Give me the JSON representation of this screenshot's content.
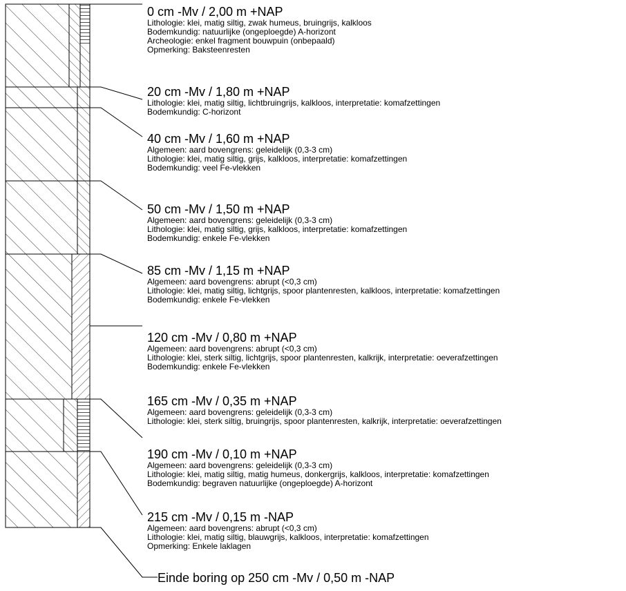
{
  "layers": [
    {
      "heading": "0 cm -Mv / 2,00 m +NAP",
      "lines": [
        "Lithologie: klei, matig siltig, zwak humeus, bruingrijs, kalkloos",
        "Bodemkundig: natuurlijke (ongeploegde) A-horizont",
        "Archeologie: enkel fragment bouwpuin (onbepaald)",
        "Opmerking: Baksteenresten"
      ]
    },
    {
      "heading": "20 cm -Mv / 1,80 m +NAP",
      "lines": [
        "Lithologie: klei, matig siltig, lichtbruingrijs, kalkloos, interpretatie: komafzettingen",
        "Bodemkundig: C-horizont"
      ]
    },
    {
      "heading": "40 cm -Mv / 1,60 m +NAP",
      "lines": [
        "Algemeen: aard bovengrens: geleidelijk (0,3-3 cm)",
        "Lithologie: klei, matig siltig, grijs, kalkloos, interpretatie: komafzettingen",
        "Bodemkundig: veel Fe-vlekken"
      ]
    },
    {
      "heading": "50 cm -Mv / 1,50 m +NAP",
      "lines": [
        "Algemeen: aard bovengrens: geleidelijk (0,3-3 cm)",
        "Lithologie: klei, matig siltig, grijs, kalkloos, interpretatie: komafzettingen",
        "Bodemkundig: enkele Fe-vlekken"
      ]
    },
    {
      "heading": "85 cm -Mv / 1,15 m +NAP",
      "lines": [
        "Algemeen: aard bovengrens: abrupt (<0,3 cm)",
        "Lithologie: klei, matig siltig, lichtgrijs, spoor plantenresten, kalkloos, interpretatie: komafzettingen",
        "Bodemkundig: enkele Fe-vlekken"
      ]
    },
    {
      "heading": "120 cm -Mv / 0,80 m +NAP",
      "lines": [
        "Algemeen: aard bovengrens: abrupt (<0,3 cm)",
        "Lithologie: klei, sterk siltig, lichtgrijs, spoor plantenresten, kalkrijk, interpretatie: oeverafzettingen",
        "Bodemkundig: enkele Fe-vlekken"
      ]
    },
    {
      "heading": "165 cm -Mv / 0,35 m +NAP",
      "lines": [
        "Algemeen: aard bovengrens: geleidelijk (0,3-3 cm)",
        "Lithologie: klei, sterk siltig, bruingrijs, spoor plantenresten, kalkrijk, interpretatie: oeverafzettingen"
      ]
    },
    {
      "heading": "190 cm -Mv / 0,10 m +NAP",
      "lines": [
        "Algemeen: aard bovengrens: geleidelijk (0,3-3 cm)",
        "Lithologie: klei, matig siltig, matig humeus, donkergrijs, kalkloos, interpretatie: komafzettingen",
        "Bodemkundig: begraven natuurlijke (ongeploegde) A-horizont"
      ]
    },
    {
      "heading": "215 cm -Mv / 0,15 m -NAP",
      "lines": [
        "Algemeen: aard bovengrens: abrupt (<0,3 cm)",
        "Lithologie: klei, matig siltig, blauwgrijs, kalkloos, interpretatie: komafzettingen",
        "Opmerking: Enkele laklagen"
      ]
    }
  ],
  "end_label": "Einde boring op 250 cm -Mv / 0,50 m -NAP",
  "colors": {
    "stroke": "#000000",
    "background": "#ffffff"
  }
}
